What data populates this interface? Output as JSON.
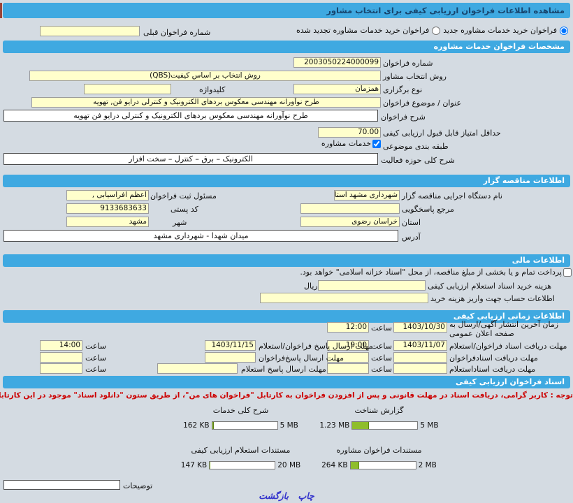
{
  "title_bar": "مشاهده اطلاعات فراخوان ارزیابی کیفی برای انتخاب مشاور",
  "header": {
    "radio_new": "فراخوان خرید خدمات مشاوره جدید",
    "radio_renew": "فراخوان خرید خدمات مشاوره تجدید شده",
    "prev_number_label": "شماره فراخوان قبلی",
    "prev_number_value": ""
  },
  "specs": {
    "title": "مشخصات فراخوان خدمات مشاوره",
    "number_label": "شماره فراخوان",
    "number_value": "2003050224000099",
    "method_label": "روش انتخاب مشاور",
    "method_value": "روش انتخاب بر اساس کیفیت(QBS)",
    "type_label": "نوع برگزاری",
    "type_value": "همزمان",
    "keyword_label": "کلیدواژه",
    "keyword_value": "",
    "subject_label": "عنوان / موضوع فراخوان",
    "subject_value": "طرح نوآورانه مهندسی معکوس بردهای الکترونیک و کنترلی درایو فن, تهویه",
    "desc_label": "شرح فراخوان",
    "desc_value": "طرح نوآورانه مهندسی معکوس بردهای الکترونیک و کنترلی درایو فن تهویه",
    "min_score_label": "حداقل امتیاز قابل قبول ارزیابی کیفی",
    "min_score_value": "70.00",
    "category_label": "طبقه بندی موضوعی",
    "category_value": "خدمات مشاوره",
    "activity_label": "شرح کلی حوزه فعالیت",
    "activity_value": "الکترونیک – برق – کنترل – سخت افزار"
  },
  "employer": {
    "title": "اطلاعات مناقصه گزار",
    "agency_label": "نام دستگاه اجرایی مناقصه گزار",
    "agency_value": "شهرداری مشهد استان خر",
    "registrar_label": "مسئول ثبت فراخوان",
    "registrar_value": "اعظم افراسیابی ,",
    "contact_label": "مرجع پاسخگویی",
    "contact_value": "",
    "postal_label": "کد پستی",
    "postal_value": "9133683633",
    "province_label": "استان",
    "province_value": "خراسان رضوی",
    "city_label": "شهر",
    "city_value": "مشهد",
    "address_label": "آدرس",
    "address_value": "میدان شهدا - شهرداری مشهد"
  },
  "financial": {
    "title": "اطلاعات مالی",
    "treasury_note": "پرداخت تمام و یا بخشی از مبلغ مناقصه، از محل \"اسناد خزانه اسلامی\" خواهد بود.",
    "fee_label": "هزینه خرید اسناد استعلام ارزیابی کیفی",
    "fee_value": "",
    "currency": "ریال",
    "account_label": "اطلاعات حساب جهت واریز هزینه خرید",
    "account_value": ""
  },
  "schedule": {
    "title": "اطلاعات زمانی ارزیابی کیفی",
    "hour_label": "ساعت",
    "right": [
      {
        "label1": "زمان آخرین انتشار آگهی/ارسال به",
        "label2": "صفحه اعلان عمومی",
        "date": "1403/10/30",
        "time": "12:00"
      },
      {
        "label1": "مهلت دریافت اسناد فراخوان/استعلام",
        "label2": "",
        "date": "1403/11/07",
        "time": "19:00"
      },
      {
        "label1": "مهلت دریافت اسنادفراخوان",
        "label2": "",
        "date": "",
        "time": ""
      },
      {
        "label1": "مهلت دریافت اسناداستعلام",
        "label2": "",
        "date": "",
        "time": ""
      }
    ],
    "left": [
      {
        "label1": "مهلت ارسال پاسخ فراخوان/استعلام",
        "date": "1403/11/15",
        "time": "14:00"
      },
      {
        "label1": "مهلت ارسال پاسخ‌فراخوان",
        "date": "",
        "time": ""
      },
      {
        "label1": "مهلت ارسال پاسخ استعلام",
        "date": "",
        "time": ""
      }
    ]
  },
  "documents": {
    "title": "اسناد فراخوان ارزیابی کیفی",
    "notice": "توجه : کاربر گرامی، دریافت اسناد در مهلت قانونی و پس از افزودن فراخوان به کارتابل \"فراخوان های من\"، از طریق ستون \"دانلود اسناد\" موجود در این کارتابل، امکانپذیر می‌باشد.",
    "files": [
      {
        "name": "گزارش شناخت",
        "size": "1.23 MB",
        "max": "5 MB",
        "pct": 25
      },
      {
        "name": "شرح کلی خدمات",
        "size": "162 KB",
        "max": "5 MB",
        "pct": 3
      },
      {
        "name": "مستندات فراخوان مشاوره",
        "size": "264 KB",
        "max": "2 MB",
        "pct": 13
      },
      {
        "name": "مستندات استعلام ارزیابی کیفی",
        "size": "147 KB",
        "max": "20 MB",
        "pct": 1
      }
    ]
  },
  "footer": {
    "notes_label": "توضیحات",
    "notes_value": "",
    "print_link": "چاپ",
    "back_link": "بازگشت"
  },
  "colors": {
    "accent_blue": "#3FA9E1",
    "input_yellow": "#FFFFCC",
    "progress_green": "#8FBE2B",
    "notice_red": "#CC0000",
    "link_blue": "#3333CC",
    "title_text": "#17456E",
    "page_bg": "#D4DBE2"
  }
}
